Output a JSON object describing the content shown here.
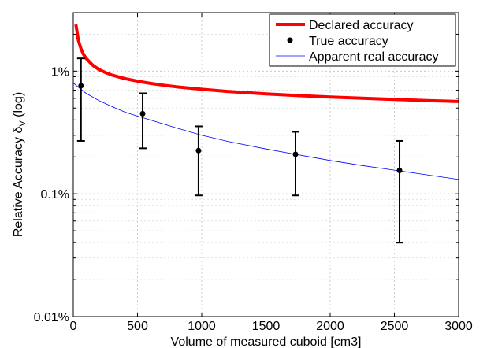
{
  "chart_data": {
    "type": "line",
    "xlabel": "Volume of measured cuboid [cm3]",
    "ylabel": {
      "main": "Relative Accuracy ",
      "delta": "δ",
      "subscript": "V",
      "suffix": " (log)"
    },
    "xlim": [
      0,
      3000
    ],
    "ylim_percent": [
      0.01,
      3
    ],
    "y_scale": "log",
    "x_ticks": [
      0,
      500,
      1000,
      1500,
      2000,
      2500,
      3000
    ],
    "x_tick_labels": [
      "0",
      "500",
      "1000",
      "1500",
      "2000",
      "2500",
      "3000"
    ],
    "y_ticks": [
      0.01,
      0.1,
      1
    ],
    "y_tick_labels": [
      "0.01%",
      "0.1%",
      "1%"
    ],
    "grid": true,
    "legend_position": "top-right",
    "colors": {
      "declared": "#ff0000",
      "true": "#000000",
      "apparent": "#0000ff"
    },
    "series": [
      {
        "name": "Declared accuracy",
        "kind": "line",
        "x": [
          20,
          40,
          60,
          80,
          100,
          150,
          200,
          250,
          300,
          400,
          500,
          600,
          700,
          800,
          1000,
          1200,
          1500,
          1750,
          2000,
          2250,
          2500,
          2750,
          3000
        ],
        "y": [
          2.4,
          1.78,
          1.52,
          1.37,
          1.27,
          1.12,
          1.03,
          0.975,
          0.93,
          0.87,
          0.828,
          0.795,
          0.768,
          0.746,
          0.711,
          0.683,
          0.652,
          0.632,
          0.615,
          0.601,
          0.588,
          0.576,
          0.566
        ]
      },
      {
        "name": "True accuracy",
        "kind": "errorbar",
        "x": [
          60,
          540,
          975,
          1730,
          2540
        ],
        "y": [
          0.76,
          0.45,
          0.225,
          0.21,
          0.155
        ],
        "y_low": [
          0.27,
          0.235,
          0.097,
          0.097,
          0.04
        ],
        "y_high": [
          1.27,
          0.66,
          0.355,
          0.32,
          0.27
        ]
      },
      {
        "name": "Apparent real accuracy",
        "kind": "line",
        "x": [
          0,
          60,
          100,
          200,
          300,
          400,
          500,
          600,
          800,
          1000,
          1200,
          1500,
          1750,
          2000,
          2250,
          2500,
          2750,
          3000
        ],
        "y": [
          0.8,
          0.71,
          0.66,
          0.575,
          0.515,
          0.465,
          0.43,
          0.4,
          0.345,
          0.3,
          0.268,
          0.232,
          0.208,
          0.187,
          0.17,
          0.156,
          0.143,
          0.131
        ]
      }
    ]
  }
}
